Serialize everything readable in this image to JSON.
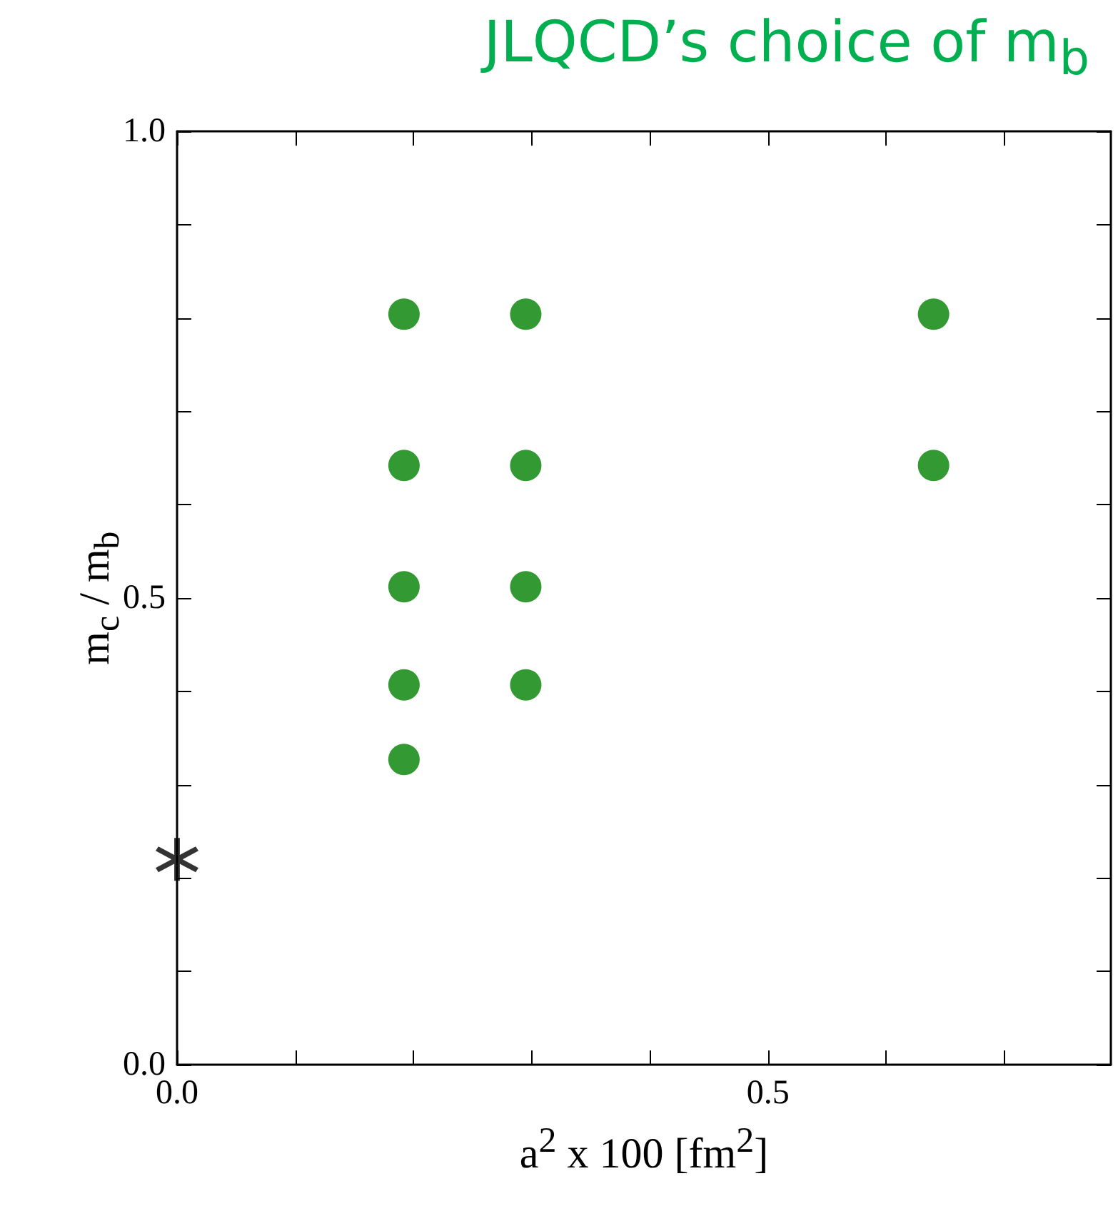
{
  "chart_data": {
    "type": "scatter",
    "title": "JLQCD’s choice of m$_{b}$",
    "xlabel": "a$^{2}$ x 100 [fm$^{2}$]",
    "ylabel": "m$_{c}$ / m$_{b}$",
    "series": [
      {
        "color": "#008000",
        "marker": "circle",
        "x": [
          0.192,
          0.192,
          0.192,
          0.192,
          0.192,
          0.295,
          0.295,
          0.295,
          0.295,
          0.64,
          0.64
        ],
        "values": [
          0.804,
          0.642,
          0.512,
          0.407,
          0.327,
          0.804,
          0.642,
          0.512,
          0.407,
          0.804,
          0.642
        ]
      },
      {
        "color": "#000000",
        "marker": "star",
        "x": [
          0.0
        ],
        "values": [
          0.22
        ]
      }
    ],
    "xlim": [
      0,
      0.79
    ],
    "ylim": [
      0,
      1
    ],
    "xticks": [
      {
        "value": 0,
        "label": "0.0"
      },
      {
        "value": 0.1,
        "label": null
      },
      {
        "value": 0.2,
        "label": null
      },
      {
        "value": 0.3,
        "label": null
      },
      {
        "value": 0.4,
        "label": null
      },
      {
        "value": 0.5,
        "label": "0.5"
      },
      {
        "value": 0.6,
        "label": null
      },
      {
        "value": 0.7,
        "label": null
      }
    ],
    "yticks": [
      {
        "value": 0,
        "label": "0.0"
      },
      {
        "value": 0.1,
        "label": null
      },
      {
        "value": 0.2,
        "label": null
      },
      {
        "value": 0.3,
        "label": null
      },
      {
        "value": 0.4,
        "label": null
      },
      {
        "value": 0.5,
        "label": "0.5"
      },
      {
        "value": 0.6,
        "label": null
      },
      {
        "value": 0.7,
        "label": null
      },
      {
        "value": 0.8,
        "label": null
      },
      {
        "value": 0.9,
        "label": null
      },
      {
        "value": 1,
        "label": "1.0"
      }
    ],
    "grid": false
  }
}
